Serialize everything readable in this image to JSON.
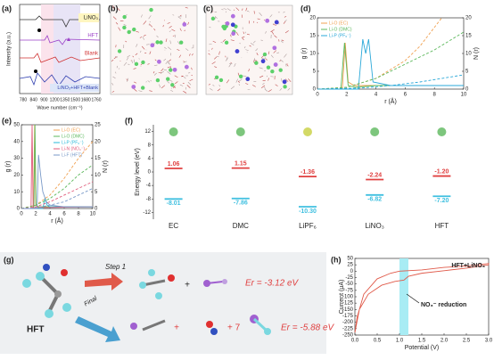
{
  "panel_labels": [
    "(a)",
    "(b)",
    "(c)",
    "(d)",
    "(e)",
    "(f)",
    "(g)",
    "(h)"
  ],
  "a": {
    "ylabel": "Intensity (a.u.)",
    "xlabel": "Wave number (cm⁻¹)",
    "xtick_labels": [
      780,
      840,
      900,
      1200,
      1350,
      1500,
      1680,
      1760
    ],
    "spectra": [
      "LiNO₃",
      "HFT",
      "Blank",
      "LiNO₃+HFT+Blank"
    ]
  },
  "g": {
    "step1": "Step 1",
    "er1": "Er = -3.12 eV",
    "reactant": "HFT",
    "final": "Final",
    "plus": "+",
    "plus_seven": "+ 7",
    "er2": "Er = -5.88 eV"
  },
  "chart_data": [
    {
      "type": "line",
      "xlabel": "r (Å)",
      "ylabel": "g (r)",
      "y2label": "N (r)",
      "xlim": [
        0,
        10
      ],
      "xticks": [
        0,
        2,
        4,
        6,
        8,
        10
      ],
      "ylim": [
        0,
        20
      ],
      "yticks": [
        0,
        5,
        10,
        15,
        20
      ],
      "y2lim": [
        0,
        20
      ],
      "y2ticks": [
        0,
        5,
        10,
        15,
        20
      ],
      "legend": "upper left",
      "series": [
        {
          "name": "Li-O (EC)",
          "color": "#f0a050",
          "x": [
            0,
            1.7,
            1.9,
            2.1,
            2.5,
            4,
            6,
            8,
            10
          ],
          "values": [
            0,
            0,
            13,
            2,
            1,
            1,
            1,
            1,
            1
          ]
        },
        {
          "name": "Li-O (DMC)",
          "color": "#5cb85c",
          "x": [
            0,
            1.6,
            1.85,
            2.1,
            2.6,
            4,
            6,
            8,
            10
          ],
          "values": [
            0,
            0,
            13,
            1,
            0.5,
            1,
            1,
            1,
            1
          ]
        },
        {
          "name": "Li-P (PF₆⁻)",
          "color": "#2aa8d8",
          "x": [
            0,
            2.8,
            3.1,
            3.3,
            3.5,
            3.8,
            5,
            7,
            10
          ],
          "values": [
            0,
            0,
            14,
            10,
            14,
            2,
            1,
            1,
            1
          ]
        },
        {
          "color": "#f0a050",
          "dash": true,
          "axis": "y2",
          "x": [
            0,
            2,
            4,
            6,
            7,
            8.5
          ],
          "values": [
            0,
            0.5,
            3,
            8,
            12,
            20
          ]
        },
        {
          "color": "#5cb85c",
          "dash": true,
          "axis": "y2",
          "x": [
            0,
            2,
            4,
            6,
            8,
            10
          ],
          "values": [
            0,
            0.5,
            3,
            7,
            11,
            16
          ]
        },
        {
          "color": "#2aa8d8",
          "dash": true,
          "axis": "y2",
          "x": [
            0,
            3,
            5,
            7,
            10
          ],
          "values": [
            0,
            0.3,
            1,
            2,
            4
          ]
        }
      ]
    },
    {
      "type": "line",
      "xlabel": "r (Å)",
      "ylabel": "g (r)",
      "y2label": "N (r)",
      "xlim": [
        0,
        10
      ],
      "xticks": [
        0,
        2,
        4,
        6,
        8,
        10
      ],
      "ylim": [
        0,
        50
      ],
      "yticks": [
        0,
        10,
        20,
        30,
        40,
        50
      ],
      "y2lim": [
        0,
        25
      ],
      "y2ticks": [
        0,
        5,
        10,
        15,
        20,
        25
      ],
      "legend": "upper right",
      "series": [
        {
          "name": "Li-O (EC)",
          "color": "#f0a050",
          "x": [
            0,
            1.7,
            1.85,
            2,
            2.3,
            4,
            10
          ],
          "values": [
            0,
            0,
            50,
            3,
            1,
            1,
            1
          ]
        },
        {
          "name": "Li-O (DMC)",
          "color": "#5cb85c",
          "x": [
            0,
            1.75,
            1.9,
            2.05,
            2.4,
            4,
            10
          ],
          "values": [
            0,
            0,
            50,
            2,
            1,
            1,
            1
          ]
        },
        {
          "name": "Li-P (PF₆⁻)",
          "color": "#2ab8d8",
          "x": [
            0,
            3,
            3.3,
            3.6,
            4,
            10
          ],
          "values": [
            0,
            0,
            6,
            2,
            1,
            1
          ]
        },
        {
          "name": "Li-N (NO₃⁻)",
          "color": "#e05a7a",
          "x": [
            0,
            1.35,
            1.5,
            1.65,
            2,
            10
          ],
          "values": [
            0,
            0,
            50,
            0,
            0.5,
            1
          ]
        },
        {
          "name": "Li-F (HFT)",
          "color": "#7a9ac8",
          "x": [
            0,
            2.2,
            2.4,
            2.7,
            3,
            3.5,
            4,
            6,
            10
          ],
          "values": [
            0,
            0,
            32,
            20,
            10,
            4,
            2,
            1,
            1
          ]
        },
        {
          "color": "#f0a050",
          "dash": true,
          "axis": "y2",
          "x": [
            0,
            2,
            4,
            6,
            8,
            10
          ],
          "values": [
            0,
            1,
            4,
            9,
            15,
            20
          ]
        },
        {
          "color": "#5cb85c",
          "dash": true,
          "axis": "y2",
          "x": [
            0,
            2,
            4,
            6,
            8,
            10
          ],
          "values": [
            0,
            1,
            3,
            6,
            10,
            13
          ]
        },
        {
          "color": "#e05a7a",
          "dash": true,
          "axis": "y2",
          "x": [
            0,
            2,
            4,
            6,
            8,
            10
          ],
          "values": [
            0,
            0.5,
            2,
            4,
            6,
            8
          ]
        },
        {
          "color": "#7a9ac8",
          "dash": true,
          "axis": "y2",
          "x": [
            0,
            2,
            4,
            6,
            8,
            10
          ],
          "values": [
            0,
            0.2,
            1,
            2,
            4,
            6
          ]
        }
      ]
    },
    {
      "type": "energy_level",
      "ylabel": "Energy level (eV)",
      "ylim": [
        -14,
        14
      ],
      "yticks": [
        12,
        8,
        4,
        0,
        -4,
        -8,
        -12
      ],
      "categories": [
        "EC",
        "DMC",
        "LiPF₆",
        "LiNO₃",
        "HFT"
      ],
      "series": [
        {
          "color": "#e04040",
          "values": [
            1.06,
            1.15,
            -1.36,
            -2.24,
            -1.2
          ],
          "value_labels": [
            "1.06",
            "1.15",
            "-1.36",
            "-2.24",
            "-1.20"
          ]
        },
        {
          "color": "#40c0e0",
          "values": [
            -8.01,
            -7.86,
            -10.3,
            -6.82,
            -7.2
          ],
          "value_labels": [
            "-8.01",
            "-7.86",
            "-10.30",
            "-6.82",
            "-7.20"
          ]
        }
      ]
    },
    {
      "type": "line",
      "xlabel": "Potential (V)",
      "ylabel": "Current (μA)",
      "xlim": [
        0,
        3
      ],
      "xticks": [
        {
          "value": 0,
          "label": "0.0"
        },
        0.5,
        {
          "value": 1,
          "label": "1.0"
        },
        1.5,
        {
          "value": 2,
          "label": "2.0"
        },
        2.5,
        {
          "value": 3,
          "label": "3.0"
        }
      ],
      "ylim": [
        -250,
        50
      ],
      "yticks": [
        50,
        25,
        0,
        -25,
        -50,
        -75,
        -100,
        -125,
        -150,
        -175,
        -200,
        -225,
        -250
      ],
      "highlight": [
        1.0,
        1.2
      ],
      "annotations": [
        "HFT+LiNO₃",
        "NO₃⁻ reduction"
      ],
      "series": [
        {
          "color": "#e05a4a",
          "x": [
            3.0,
            2.5,
            2.0,
            1.5,
            1.2,
            1.1,
            0.9,
            0.6,
            0.3,
            0.1,
            0.0,
            0.05,
            0.2,
            0.5,
            0.8,
            1.0,
            1.5,
            2.0,
            2.5,
            3.0,
            3.0
          ],
          "values": [
            25,
            12,
            2,
            -8,
            -20,
            -35,
            -40,
            -55,
            -90,
            -150,
            -240,
            -180,
            -90,
            -30,
            -8,
            0,
            5,
            15,
            20,
            30,
            25
          ]
        }
      ]
    }
  ]
}
